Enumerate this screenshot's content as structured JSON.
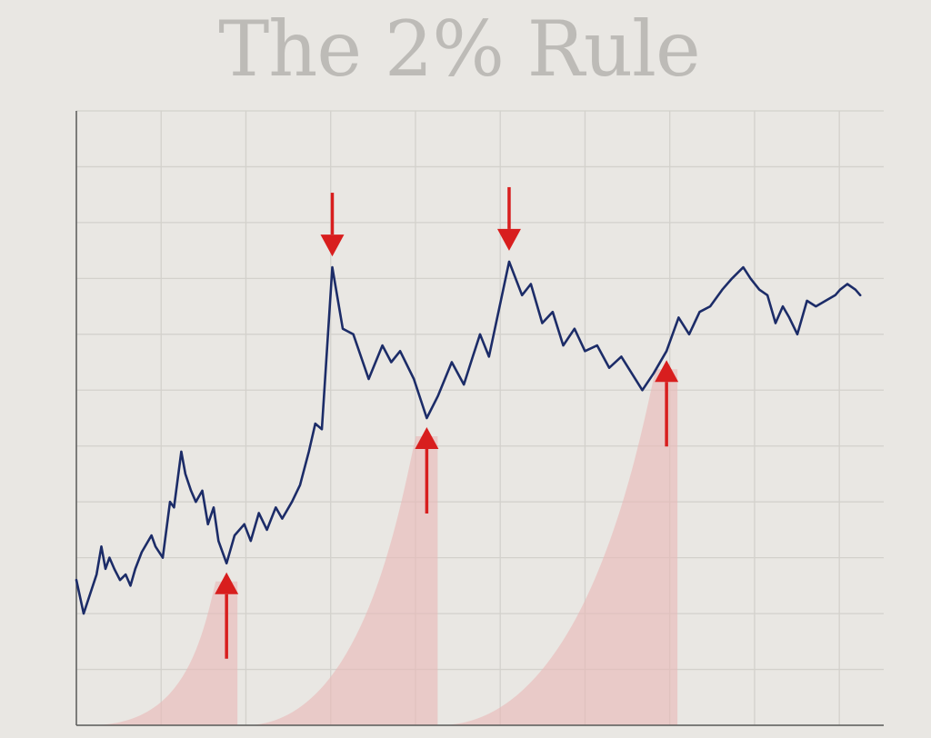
{
  "chart_data": {
    "type": "line",
    "title": "The 2% Rule",
    "xlabel": "",
    "ylabel": "",
    "tick_labels_shown": false,
    "grid": true,
    "ylim": [
      0,
      11
    ],
    "xlim": [
      0,
      100
    ],
    "series": [
      {
        "values": [
          [
            0,
            2.6
          ],
          [
            0.9,
            2.0
          ],
          [
            2.5,
            2.7
          ],
          [
            3.1,
            3.2
          ],
          [
            3.6,
            2.8
          ],
          [
            4.1,
            3.0
          ],
          [
            4.7,
            2.8
          ],
          [
            5.4,
            2.6
          ],
          [
            6.1,
            2.7
          ],
          [
            6.7,
            2.5
          ],
          [
            7.3,
            2.8
          ],
          [
            8.1,
            3.1
          ],
          [
            9.3,
            3.4
          ],
          [
            9.8,
            3.2
          ],
          [
            10.7,
            3.0
          ],
          [
            11.6,
            4.0
          ],
          [
            12.1,
            3.9
          ],
          [
            13.0,
            4.9
          ],
          [
            13.5,
            4.5
          ],
          [
            14.2,
            4.2
          ],
          [
            14.8,
            4.0
          ],
          [
            15.6,
            4.2
          ],
          [
            16.3,
            3.6
          ],
          [
            17.0,
            3.9
          ],
          [
            17.6,
            3.3
          ],
          [
            18.6,
            2.9
          ],
          [
            19.6,
            3.4
          ],
          [
            20.8,
            3.6
          ],
          [
            21.6,
            3.3
          ],
          [
            22.6,
            3.8
          ],
          [
            23.6,
            3.5
          ],
          [
            24.7,
            3.9
          ],
          [
            25.5,
            3.7
          ],
          [
            26.7,
            4.0
          ],
          [
            27.7,
            4.3
          ],
          [
            28.8,
            4.9
          ],
          [
            29.6,
            5.4
          ],
          [
            30.4,
            5.3
          ],
          [
            31.7,
            8.2
          ],
          [
            33.0,
            7.1
          ],
          [
            34.3,
            7.0
          ],
          [
            36.2,
            6.2
          ],
          [
            37.9,
            6.8
          ],
          [
            39.0,
            6.5
          ],
          [
            40.1,
            6.7
          ],
          [
            41.8,
            6.2
          ],
          [
            43.4,
            5.5
          ],
          [
            44.8,
            5.9
          ],
          [
            46.5,
            6.5
          ],
          [
            48.0,
            6.1
          ],
          [
            49.1,
            6.6
          ],
          [
            50.0,
            7.0
          ],
          [
            51.1,
            6.6
          ],
          [
            53.6,
            8.3
          ],
          [
            55.2,
            7.7
          ],
          [
            56.3,
            7.9
          ],
          [
            57.7,
            7.2
          ],
          [
            59.0,
            7.4
          ],
          [
            60.3,
            6.8
          ],
          [
            61.7,
            7.1
          ],
          [
            63.0,
            6.7
          ],
          [
            64.5,
            6.8
          ],
          [
            66.0,
            6.4
          ],
          [
            67.5,
            6.6
          ],
          [
            68.8,
            6.3
          ],
          [
            70.1,
            6.0
          ],
          [
            71.5,
            6.3
          ],
          [
            73.1,
            6.7
          ],
          [
            74.6,
            7.3
          ],
          [
            75.9,
            7.0
          ],
          [
            77.2,
            7.4
          ],
          [
            78.5,
            7.5
          ],
          [
            80.0,
            7.8
          ],
          [
            81.2,
            8.0
          ],
          [
            82.6,
            8.2
          ],
          [
            83.5,
            8.0
          ],
          [
            84.6,
            7.8
          ],
          [
            85.6,
            7.7
          ],
          [
            86.6,
            7.2
          ],
          [
            87.5,
            7.5
          ],
          [
            88.3,
            7.3
          ],
          [
            89.3,
            7.0
          ],
          [
            90.5,
            7.6
          ],
          [
            91.6,
            7.5
          ],
          [
            92.8,
            7.6
          ],
          [
            94.0,
            7.7
          ],
          [
            94.6,
            7.8
          ],
          [
            95.5,
            7.9
          ],
          [
            96.5,
            7.8
          ],
          [
            97.1,
            7.7
          ]
        ]
      }
    ],
    "peaks_marked": [
      {
        "x": 31.7,
        "y": 8.2,
        "arrow": "down"
      },
      {
        "x": 53.6,
        "y": 8.3,
        "arrow": "down"
      }
    ],
    "troughs_marked": [
      {
        "x": 18.6,
        "y": 2.9,
        "arrow": "up"
      },
      {
        "x": 43.4,
        "y": 5.5,
        "arrow": "up"
      },
      {
        "x": 73.1,
        "y": 6.7,
        "arrow": "up"
      }
    ],
    "colors": {
      "line": "#1c2c68",
      "arrow": "#d81e1e",
      "shade": "#e9b8b6",
      "grid": "#d3d1cc",
      "axis": "#5a5a5a",
      "background": "#e9e7e3",
      "title": "#bdbbb7"
    }
  }
}
